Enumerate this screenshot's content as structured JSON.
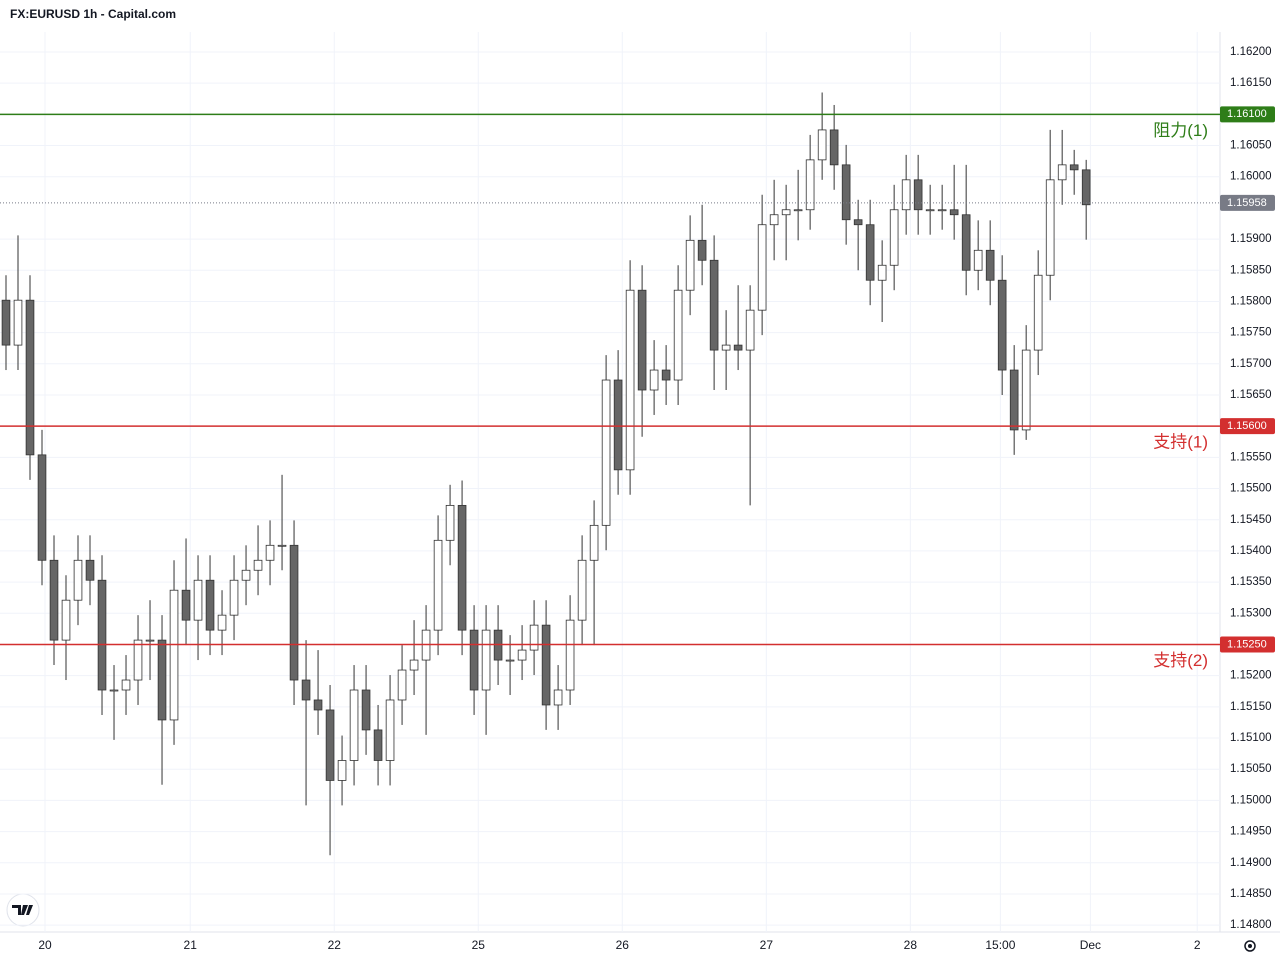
{
  "chart_data": {
    "type": "candlestick",
    "title": "FX:EURUSD 1h - Capital.com",
    "x": [
      1,
      3,
      5,
      7,
      9,
      11,
      13,
      15,
      17,
      19,
      21,
      23,
      25,
      27,
      29,
      31,
      33,
      35,
      37,
      39,
      41,
      43,
      45,
      47,
      49,
      51,
      53,
      55,
      57,
      59,
      61,
      63,
      65,
      67,
      69,
      71,
      73,
      75,
      77,
      79,
      81,
      83,
      85,
      87,
      89,
      91,
      93,
      95,
      97,
      99,
      101,
      103,
      105,
      107,
      109,
      111,
      113,
      115,
      117,
      119,
      121,
      123,
      125,
      127,
      129,
      131,
      133,
      135,
      137,
      139,
      141,
      143,
      145,
      147,
      149,
      151,
      153,
      155,
      157,
      159,
      161,
      163,
      165,
      167,
      169,
      171,
      173,
      175,
      177,
      179,
      181
    ],
    "open": [
      1.15802,
      1.1573,
      1.15802,
      1.15554,
      1.15385,
      1.15257,
      1.15321,
      1.15385,
      1.15353,
      1.15177,
      1.15177,
      1.15193,
      1.15257,
      1.15257,
      1.15129,
      1.15337,
      1.15289,
      1.15353,
      1.15273,
      1.15297,
      1.15353,
      1.15369,
      1.15385,
      1.15409,
      1.15409,
      1.15193,
      1.15161,
      1.15145,
      1.15032,
      1.15064,
      1.15177,
      1.15113,
      1.15064,
      1.15161,
      1.15209,
      1.15225,
      1.15273,
      1.15417,
      1.15473,
      1.15273,
      1.15177,
      1.15273,
      1.15225,
      1.15225,
      1.15241,
      1.15281,
      1.15153,
      1.15177,
      1.15289,
      1.15385,
      1.15441,
      1.15674,
      1.1553,
      1.15818,
      1.15658,
      1.1569,
      1.15674,
      1.15818,
      1.15898,
      1.15866,
      1.15722,
      1.1573,
      1.15722,
      1.15786,
      1.15923,
      1.15939,
      1.15947,
      1.15947,
      1.16027,
      1.16075,
      1.16019,
      1.15931,
      1.15923,
      1.15834,
      1.15858,
      1.15947,
      1.15995,
      1.15947,
      1.15947,
      1.15947,
      1.15939,
      1.1585,
      1.15882,
      1.15834,
      1.1569,
      1.15594,
      1.15722,
      1.15842,
      1.15995,
      1.16019,
      1.16011
    ],
    "high": [
      1.15842,
      1.15906,
      1.15842,
      1.15594,
      1.15425,
      1.15361,
      1.15425,
      1.15425,
      1.15393,
      1.15217,
      1.15233,
      1.15297,
      1.15321,
      1.15297,
      1.15385,
      1.1542,
      1.15393,
      1.15393,
      1.15337,
      1.15393,
      1.15409,
      1.15441,
      1.15449,
      1.15522,
      1.15449,
      1.15257,
      1.15241,
      1.15185,
      1.15104,
      1.15217,
      1.15217,
      1.15153,
      1.15201,
      1.15249,
      1.15289,
      1.15313,
      1.15457,
      1.15506,
      1.15513,
      1.15313,
      1.15313,
      1.15313,
      1.15265,
      1.15281,
      1.15321,
      1.15321,
      1.15217,
      1.15329,
      1.15425,
      1.15481,
      1.15714,
      1.15722,
      1.15866,
      1.15858,
      1.15738,
      1.1573,
      1.15858,
      1.15938,
      1.15955,
      1.15906,
      1.15786,
      1.15826,
      1.15826,
      1.15971,
      1.15995,
      1.15987,
      1.16011,
      1.16067,
      1.16135,
      1.16115,
      1.16051,
      1.15963,
      1.15963,
      1.15898,
      1.15987,
      1.16035,
      1.16035,
      1.15987,
      1.15987,
      1.16019,
      1.16019,
      1.1593,
      1.1593,
      1.15874,
      1.1573,
      1.15762,
      1.15882,
      1.16075,
      1.16075,
      1.16043,
      1.16027
    ],
    "low": [
      1.1569,
      1.1569,
      1.15514,
      1.15345,
      1.15217,
      1.15193,
      1.15281,
      1.15313,
      1.15137,
      1.15097,
      1.15137,
      1.15153,
      1.15193,
      1.15025,
      1.15089,
      1.15249,
      1.15225,
      1.15233,
      1.15233,
      1.15257,
      1.15313,
      1.15329,
      1.15345,
      1.15369,
      1.15153,
      1.14992,
      1.15105,
      1.14912,
      1.14992,
      1.15024,
      1.15073,
      1.15024,
      1.15024,
      1.15121,
      1.15169,
      1.15105,
      1.15233,
      1.15377,
      1.15233,
      1.15137,
      1.15105,
      1.15185,
      1.15169,
      1.15193,
      1.15201,
      1.15113,
      1.15113,
      1.15153,
      1.15249,
      1.15249,
      1.15401,
      1.1549,
      1.1549,
      1.15583,
      1.15618,
      1.15634,
      1.15634,
      1.15778,
      1.15826,
      1.15658,
      1.15658,
      1.1569,
      1.15473,
      1.15746,
      1.15866,
      1.15866,
      1.15898,
      1.15915,
      1.15995,
      1.15979,
      1.15891,
      1.1585,
      1.15794,
      1.15767,
      1.15818,
      1.15907,
      1.15907,
      1.15907,
      1.15915,
      1.15899,
      1.1581,
      1.15818,
      1.15794,
      1.1565,
      1.15554,
      1.15578,
      1.15682,
      1.15802,
      1.15955,
      1.15971,
      1.15899
    ],
    "close": [
      1.1573,
      1.15802,
      1.15554,
      1.15385,
      1.15257,
      1.15321,
      1.15385,
      1.15353,
      1.15177,
      1.15177,
      1.15193,
      1.15257,
      1.15257,
      1.15129,
      1.15337,
      1.15289,
      1.15353,
      1.15273,
      1.15297,
      1.15353,
      1.15369,
      1.15385,
      1.15409,
      1.15409,
      1.15193,
      1.15161,
      1.15145,
      1.15032,
      1.15064,
      1.15177,
      1.15113,
      1.15064,
      1.15161,
      1.15209,
      1.15225,
      1.15273,
      1.15417,
      1.15473,
      1.15273,
      1.15177,
      1.15273,
      1.15225,
      1.15225,
      1.15241,
      1.15281,
      1.15153,
      1.15177,
      1.15289,
      1.15385,
      1.15441,
      1.15674,
      1.1553,
      1.15818,
      1.15658,
      1.1569,
      1.15674,
      1.15818,
      1.15898,
      1.15866,
      1.15722,
      1.1573,
      1.15722,
      1.15786,
      1.15923,
      1.15939,
      1.15947,
      1.15947,
      1.16027,
      1.16075,
      1.16019,
      1.15931,
      1.15923,
      1.15834,
      1.15858,
      1.15947,
      1.15995,
      1.15947,
      1.15947,
      1.15947,
      1.15939,
      1.1585,
      1.15882,
      1.15834,
      1.1569,
      1.15594,
      1.15722,
      1.15842,
      1.15995,
      1.16019,
      1.16011,
      1.15955
    ],
    "up_color": "#ffffff",
    "down_color": "#666666",
    "outline_color": "#333333",
    "xlim": [
      0,
      203.3
    ],
    "ylim": [
      1.14789,
      1.16232
    ],
    "xticks": [
      {
        "value": 7.5,
        "label": "20"
      },
      {
        "value": 31.7,
        "label": "21"
      },
      {
        "value": 55.7,
        "label": "22"
      },
      {
        "value": 79.7,
        "label": "25"
      },
      {
        "value": 103.7,
        "label": "26"
      },
      {
        "value": 127.7,
        "label": "27"
      },
      {
        "value": 151.7,
        "label": "28"
      },
      {
        "value": 166.7,
        "label": "15:00"
      },
      {
        "value": 181.7,
        "label": "Dec"
      },
      {
        "value": 199.5,
        "label": "2"
      }
    ],
    "yticks": [
      {
        "value": 1.162,
        "label": "1.16200"
      },
      {
        "value": 1.1615,
        "label": "1.16150"
      },
      {
        "value": 1.1605,
        "label": "1.16050"
      },
      {
        "value": 1.16,
        "label": "1.16000"
      },
      {
        "value": 1.159,
        "label": "1.15900"
      },
      {
        "value": 1.1585,
        "label": "1.15850"
      },
      {
        "value": 1.158,
        "label": "1.15800"
      },
      {
        "value": 1.1575,
        "label": "1.15750"
      },
      {
        "value": 1.157,
        "label": "1.15700"
      },
      {
        "value": 1.1565,
        "label": "1.15650"
      },
      {
        "value": 1.1555,
        "label": "1.15550"
      },
      {
        "value": 1.155,
        "label": "1.15500"
      },
      {
        "value": 1.1545,
        "label": "1.15450"
      },
      {
        "value": 1.154,
        "label": "1.15400"
      },
      {
        "value": 1.1535,
        "label": "1.15350"
      },
      {
        "value": 1.153,
        "label": "1.15300"
      },
      {
        "value": 1.152,
        "label": "1.15200"
      },
      {
        "value": 1.1515,
        "label": "1.15150"
      },
      {
        "value": 1.151,
        "label": "1.15100"
      },
      {
        "value": 1.1505,
        "label": "1.15050"
      },
      {
        "value": 1.15,
        "label": "1.15000"
      },
      {
        "value": 1.1495,
        "label": "1.14950"
      },
      {
        "value": 1.149,
        "label": "1.14900"
      },
      {
        "value": 1.1485,
        "label": "1.14850"
      },
      {
        "value": 1.148,
        "label": "1.14800"
      }
    ],
    "grid": true,
    "levels": [
      {
        "name": "阻力(1)",
        "value": 1.161,
        "label": "1.16100",
        "color": "#2e7d18"
      },
      {
        "name": "支持(1)",
        "value": 1.156,
        "label": "1.15600",
        "color": "#d32f2f"
      },
      {
        "name": "支持(2)",
        "value": 1.1525,
        "label": "1.15250",
        "color": "#d32f2f"
      }
    ],
    "last_price": {
      "value": 1.15958,
      "label": "1.15958",
      "color": "#787b86"
    }
  }
}
